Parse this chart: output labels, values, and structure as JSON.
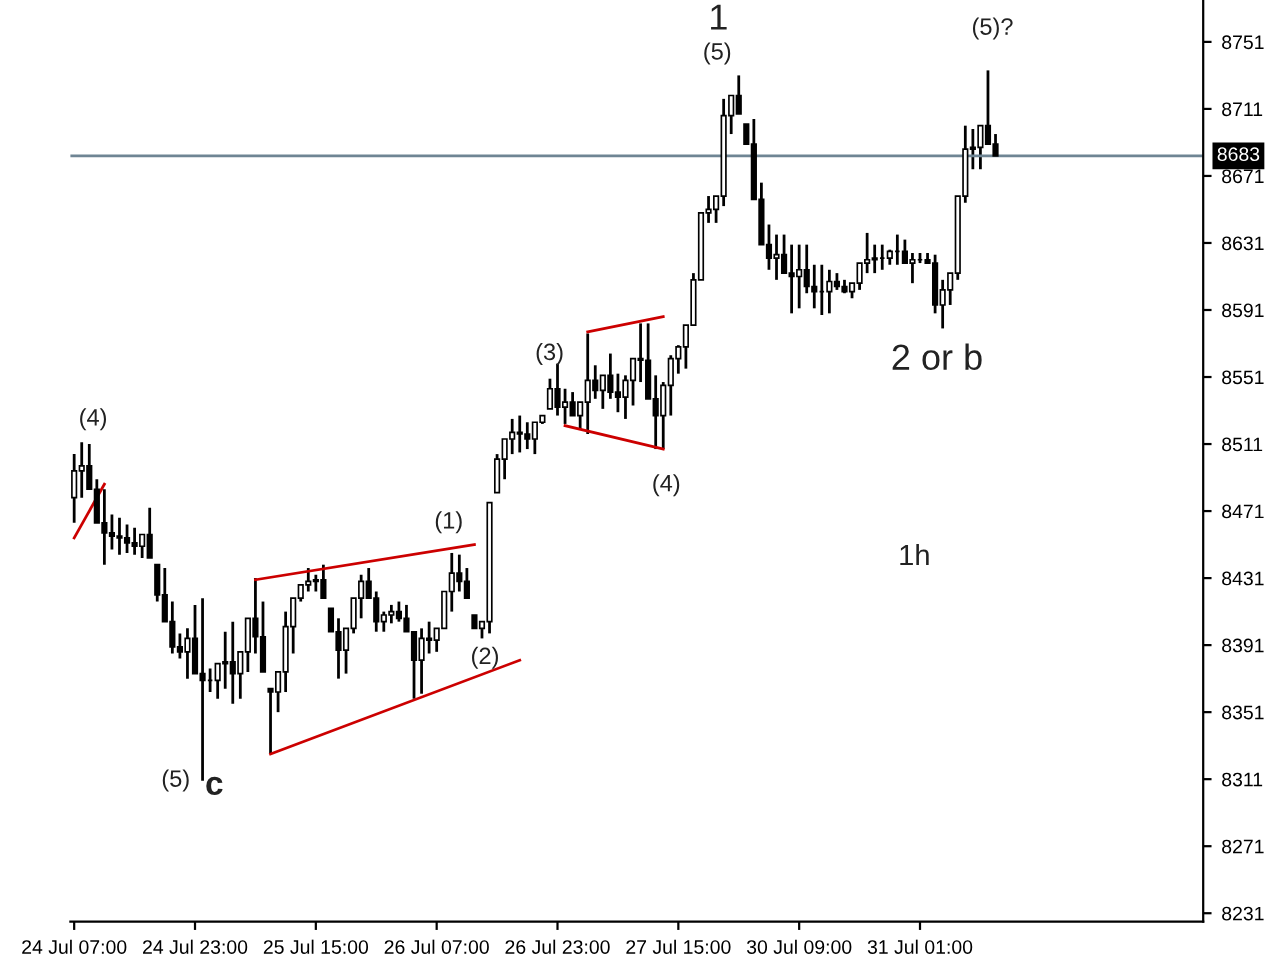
{
  "chart_data": {
    "type": "candlestick",
    "categories": [
      "24 Jul 07:00",
      null,
      null,
      null,
      null,
      null,
      null,
      null,
      null,
      null,
      null,
      null,
      null,
      null,
      null,
      null,
      "24 Jul 23:00",
      null,
      null,
      null,
      null,
      null,
      null,
      null,
      null,
      null,
      null,
      null,
      null,
      null,
      null,
      null,
      "25 Jul 15:00",
      null,
      null,
      null,
      null,
      null,
      null,
      null,
      null,
      null,
      null,
      null,
      null,
      null,
      null,
      null,
      "26 Jul 07:00",
      null,
      null,
      null,
      null,
      null,
      null,
      null,
      null,
      null,
      null,
      null,
      null,
      null,
      null,
      null,
      "26 Jul 23:00",
      null,
      null,
      null,
      null,
      null,
      null,
      null,
      null,
      null,
      null,
      null,
      null,
      null,
      null,
      null,
      "27 Jul 15:00",
      null,
      null,
      null,
      null,
      null,
      null,
      null,
      null,
      null,
      null,
      null,
      null,
      null,
      null,
      null,
      "30 Jul 09:00",
      null,
      null,
      null,
      null,
      null,
      null,
      null,
      null,
      null,
      null,
      null,
      null,
      null,
      null,
      null,
      "31 Jul 01:00",
      null,
      null,
      null,
      null,
      null,
      null,
      null,
      null,
      null,
      null,
      null,
      null,
      null,
      null,
      null,
      null,
      null,
      null,
      null,
      null,
      null,
      null,
      null,
      null,
      null,
      null,
      null,
      null,
      null,
      null,
      null,
      null,
      null,
      null,
      null,
      null,
      null
    ],
    "ohlc": [
      [
        8479,
        8505,
        8464,
        8495
      ],
      [
        8495,
        8512,
        8479,
        8498
      ],
      [
        8498,
        8511,
        8484,
        8484
      ],
      [
        8484,
        8490,
        8464,
        8464
      ],
      [
        8464,
        8484,
        8439,
        8458
      ],
      [
        8458,
        8469,
        8448,
        8456
      ],
      [
        8456,
        8467,
        8445,
        8455
      ],
      [
        8455,
        8463,
        8446,
        8452
      ],
      [
        8452,
        8461,
        8445,
        8450
      ],
      [
        8450,
        8457,
        8443,
        8457
      ],
      [
        8457,
        8473,
        8443,
        8443
      ],
      [
        8439,
        8439,
        8417,
        8421
      ],
      [
        8421,
        8437,
        8405,
        8405
      ],
      [
        8405,
        8417,
        8386,
        8390
      ],
      [
        8390,
        8398,
        8383,
        8387
      ],
      [
        8387,
        8401,
        8371,
        8395
      ],
      [
        8395,
        8415,
        8374,
        8374
      ],
      [
        8374,
        8419,
        8310,
        8370
      ],
      [
        8370,
        8377,
        8363,
        8370
      ],
      [
        8370,
        8380,
        8359,
        8380
      ],
      [
        8380,
        8399,
        8365,
        8381
      ],
      [
        8381,
        8405,
        8356,
        8374
      ],
      [
        8374,
        8387,
        8359,
        8387
      ],
      [
        8387,
        8407,
        8375,
        8407
      ],
      [
        8407,
        8431,
        8386,
        8396
      ],
      [
        8396,
        8417,
        8375,
        8375
      ],
      [
        8365,
        8365,
        8326,
        8363
      ],
      [
        8363,
        8375,
        8351,
        8375
      ],
      [
        8375,
        8411,
        8363,
        8402
      ],
      [
        8402,
        8419,
        8386,
        8419
      ],
      [
        8419,
        8427,
        8417,
        8427
      ],
      [
        8427,
        8437,
        8423,
        8429
      ],
      [
        8429,
        8433,
        8423,
        8430
      ],
      [
        8430,
        8439,
        8419,
        8419
      ],
      [
        8413,
        8413,
        8399,
        8399
      ],
      [
        8399,
        8407,
        8371,
        8388
      ],
      [
        8388,
        8401,
        8374,
        8401
      ],
      [
        8401,
        8419,
        8398,
        8419
      ],
      [
        8419,
        8433,
        8407,
        8429
      ],
      [
        8429,
        8437,
        8419,
        8419
      ],
      [
        8419,
        8423,
        8399,
        8405
      ],
      [
        8405,
        8411,
        8399,
        8409
      ],
      [
        8409,
        8415,
        8404,
        8411
      ],
      [
        8411,
        8417,
        8405,
        8407
      ],
      [
        8407,
        8415,
        8399,
        8399
      ],
      [
        8399,
        8399,
        8359,
        8382
      ],
      [
        8382,
        8401,
        8362,
        8395
      ],
      [
        8395,
        8405,
        8386,
        8394
      ],
      [
        8394,
        8401,
        8387,
        8401
      ],
      [
        8401,
        8423,
        8401,
        8423
      ],
      [
        8423,
        8446,
        8411,
        8434
      ],
      [
        8434,
        8445,
        8423,
        8429
      ],
      [
        8429,
        8437,
        8419,
        8419
      ],
      [
        8409,
        8409,
        8401,
        8401
      ],
      [
        8401,
        8405,
        8395,
        8405
      ],
      [
        8405,
        8476,
        8398,
        8476
      ],
      [
        8482,
        8505,
        8482,
        8502
      ],
      [
        8502,
        8514,
        8490,
        8514
      ],
      [
        8514,
        8526,
        8505,
        8518
      ],
      [
        8518,
        8528,
        8506,
        8517
      ],
      [
        8517,
        8524,
        8508,
        8514
      ],
      [
        8514,
        8524,
        8505,
        8524
      ],
      [
        8524,
        8528,
        8523,
        8528
      ],
      [
        8532,
        8550,
        8532,
        8544
      ],
      [
        8544,
        8559,
        8528,
        8533
      ],
      [
        8533,
        8544,
        8523,
        8536
      ],
      [
        8536,
        8542,
        8528,
        8528
      ],
      [
        8528,
        8536,
        8520,
        8536
      ],
      [
        8536,
        8577,
        8517,
        8549
      ],
      [
        8549,
        8558,
        8538,
        8543
      ],
      [
        8543,
        8552,
        8532,
        8552
      ],
      [
        8552,
        8565,
        8538,
        8542
      ],
      [
        8542,
        8553,
        8530,
        8539
      ],
      [
        8539,
        8552,
        8526,
        8549
      ],
      [
        8549,
        8562,
        8534,
        8562
      ],
      [
        8562,
        8583,
        8548,
        8561
      ],
      [
        8561,
        8583,
        8538,
        8538
      ],
      [
        8538,
        8552,
        8508,
        8528
      ],
      [
        8528,
        8548,
        8508,
        8546
      ],
      [
        8546,
        8564,
        8528,
        8562
      ],
      [
        8562,
        8570,
        8553,
        8569
      ],
      [
        8569,
        8582,
        8556,
        8582
      ],
      [
        8582,
        8613,
        8582,
        8609
      ],
      [
        8609,
        8649,
        8609,
        8649
      ],
      [
        8649,
        8659,
        8643,
        8651
      ],
      [
        8651,
        8659,
        8643,
        8659
      ],
      [
        8659,
        8717,
        8653,
        8707
      ],
      [
        8707,
        8719,
        8696,
        8719
      ],
      [
        8719,
        8731,
        8708,
        8708
      ],
      [
        8702,
        8702,
        8690,
        8690
      ],
      [
        8690,
        8705,
        8657,
        8657
      ],
      [
        8657,
        8667,
        8630,
        8630
      ],
      [
        8630,
        8642,
        8615,
        8622
      ],
      [
        8622,
        8636,
        8609,
        8624
      ],
      [
        8624,
        8636,
        8613,
        8613
      ],
      [
        8613,
        8630,
        8589,
        8611
      ],
      [
        8611,
        8630,
        8592,
        8615
      ],
      [
        8615,
        8630,
        8601,
        8605
      ],
      [
        8605,
        8618,
        8592,
        8602
      ],
      [
        8602,
        8618,
        8588,
        8602
      ],
      [
        8602,
        8615,
        8589,
        8608
      ],
      [
        8608,
        8613,
        8603,
        8605
      ],
      [
        8605,
        8609,
        8601,
        8602
      ],
      [
        8602,
        8607,
        8598,
        8607
      ],
      [
        8607,
        8619,
        8603,
        8619
      ],
      [
        8619,
        8637,
        8613,
        8621
      ],
      [
        8621,
        8630,
        8613,
        8622
      ],
      [
        8622,
        8630,
        8615,
        8622
      ],
      [
        8622,
        8627,
        8618,
        8626
      ],
      [
        8626,
        8636,
        8618,
        8626
      ],
      [
        8626,
        8633,
        8619,
        8619
      ],
      [
        8619,
        8625,
        8607,
        8621
      ],
      [
        8621,
        8625,
        8619,
        8621
      ],
      [
        8621,
        8625,
        8619,
        8619
      ],
      [
        8619,
        8624,
        8589,
        8594
      ],
      [
        8594,
        8609,
        8580,
        8603
      ],
      [
        8603,
        8613,
        8594,
        8613
      ],
      [
        8613,
        8659,
        8609,
        8659
      ],
      [
        8659,
        8701,
        8655,
        8687
      ],
      [
        8687,
        8699,
        8675,
        8688
      ],
      [
        8688,
        8701,
        8675,
        8701
      ],
      [
        8701,
        8734,
        8690,
        8690
      ],
      [
        8690,
        8696,
        8683,
        8683
      ],
      null,
      null,
      null,
      null,
      null,
      null,
      null,
      null,
      null,
      null,
      null,
      null,
      null,
      null,
      null,
      null,
      null,
      null,
      null,
      null,
      null,
      null,
      null,
      null,
      null,
      null,
      null
    ],
    "color": "#000000",
    "series": [
      {
        "type": "line",
        "color": "#cc0000",
        "values": [
          8455,
          null,
          null,
          null,
          8487,
          null,
          null,
          null,
          null,
          null,
          null,
          null,
          null,
          null,
          null,
          null,
          null,
          null,
          null,
          null,
          null,
          null,
          null,
          null,
          null,
          null,
          null,
          null,
          null,
          null,
          null,
          null,
          null,
          null,
          null,
          null,
          null,
          null,
          null,
          null,
          null,
          null,
          null,
          null,
          null,
          null,
          null,
          null,
          null,
          null,
          null,
          null,
          null,
          null,
          null,
          null,
          null,
          null,
          null,
          null,
          null,
          null,
          null,
          null,
          null,
          null,
          null,
          null,
          null,
          null,
          null,
          null,
          null,
          null,
          null,
          null,
          null,
          null,
          null,
          null,
          null,
          null,
          null,
          null,
          null,
          null,
          null,
          null,
          null,
          null,
          null,
          null,
          null,
          null,
          null,
          null,
          null,
          null,
          null,
          null,
          null,
          null,
          null,
          null,
          null,
          null,
          null,
          null,
          null,
          null,
          null,
          null,
          null,
          null,
          null,
          null,
          null,
          null,
          null,
          null,
          null,
          null,
          null,
          null,
          null,
          null,
          null,
          null,
          null,
          null,
          null,
          null,
          null,
          null,
          null,
          null,
          null,
          null,
          null,
          null,
          null,
          null,
          null,
          null,
          null,
          null,
          null,
          null,
          null,
          null
        ]
      },
      {
        "type": "line",
        "color": "#cc0000",
        "values": [
          null,
          null,
          null,
          null,
          null,
          null,
          null,
          null,
          null,
          null,
          null,
          null,
          null,
          null,
          null,
          null,
          null,
          null,
          null,
          null,
          null,
          null,
          null,
          null,
          8430,
          null,
          null,
          null,
          null,
          null,
          null,
          null,
          null,
          null,
          null,
          null,
          null,
          null,
          null,
          null,
          null,
          null,
          null,
          null,
          null,
          null,
          null,
          null,
          null,
          null,
          null,
          null,
          null,
          8451,
          null,
          null,
          null,
          null,
          null,
          null,
          null,
          null,
          null,
          null,
          null,
          null,
          null,
          null,
          null,
          null,
          null,
          null,
          null,
          null,
          null,
          null,
          null,
          null,
          null,
          null,
          null,
          null,
          null,
          null,
          null,
          null,
          null,
          null,
          null,
          null,
          null,
          null,
          null,
          null,
          null,
          null,
          null,
          null,
          null,
          null,
          null,
          null,
          null,
          null,
          null,
          null,
          null,
          null,
          null,
          null,
          null,
          null,
          null,
          null,
          null,
          null,
          null,
          null,
          null,
          null,
          null,
          null,
          null,
          null,
          null,
          null,
          null,
          null,
          null,
          null,
          null,
          null,
          null,
          null,
          null,
          null,
          null,
          null,
          null,
          null,
          null,
          null,
          null,
          null,
          null,
          null,
          null,
          null,
          null,
          null
        ]
      },
      {
        "type": "line",
        "color": "#cc0000",
        "values": [
          null,
          null,
          null,
          null,
          null,
          null,
          null,
          null,
          null,
          null,
          null,
          null,
          null,
          null,
          null,
          null,
          null,
          null,
          null,
          null,
          null,
          null,
          null,
          null,
          null,
          null,
          8326,
          null,
          null,
          null,
          null,
          null,
          null,
          null,
          null,
          null,
          null,
          null,
          null,
          null,
          null,
          null,
          null,
          null,
          null,
          null,
          null,
          null,
          null,
          null,
          null,
          null,
          null,
          null,
          null,
          null,
          null,
          null,
          null,
          8382,
          null,
          null,
          null,
          null,
          null,
          null,
          null,
          null,
          null,
          null,
          null,
          null,
          null,
          null,
          null,
          null,
          null,
          null,
          null,
          null,
          null,
          null,
          null,
          null,
          null,
          null,
          null,
          null,
          null,
          null,
          null,
          null,
          null,
          null,
          null,
          null,
          null,
          null,
          null,
          null,
          null,
          null,
          null,
          null,
          null,
          null,
          null,
          null,
          null,
          null,
          null,
          null,
          null,
          null,
          null,
          null,
          null,
          null,
          null,
          null,
          null,
          null,
          null,
          null,
          null,
          null,
          null,
          null,
          null,
          null,
          null,
          null,
          null,
          null,
          null,
          null,
          null,
          null,
          null,
          null,
          null,
          null,
          null,
          null,
          null,
          null,
          null,
          null,
          null,
          null
        ]
      },
      {
        "type": "line",
        "color": "#cc0000",
        "values": [
          null,
          null,
          null,
          null,
          null,
          null,
          null,
          null,
          null,
          null,
          null,
          null,
          null,
          null,
          null,
          null,
          null,
          null,
          null,
          null,
          null,
          null,
          null,
          null,
          null,
          null,
          null,
          null,
          null,
          null,
          null,
          null,
          null,
          null,
          null,
          null,
          null,
          null,
          null,
          null,
          null,
          null,
          null,
          null,
          null,
          null,
          null,
          null,
          null,
          null,
          null,
          null,
          null,
          null,
          null,
          null,
          null,
          null,
          null,
          null,
          null,
          null,
          null,
          null,
          null,
          null,
          null,
          null,
          8578,
          null,
          null,
          null,
          null,
          null,
          null,
          null,
          null,
          null,
          8587,
          null,
          null,
          null,
          null,
          null,
          null,
          null,
          null,
          null,
          null,
          null,
          null,
          null,
          null,
          null,
          null,
          null,
          null,
          null,
          null,
          null,
          null,
          null,
          null,
          null,
          null,
          null,
          null,
          null,
          null,
          null,
          null,
          null,
          null,
          null,
          null,
          null,
          null,
          null,
          null,
          null,
          null,
          null,
          null,
          null,
          null,
          null,
          null,
          null,
          null,
          null,
          null,
          null,
          null,
          null,
          null,
          null,
          null,
          null,
          null,
          null,
          null,
          null,
          null,
          null,
          null,
          null,
          null,
          null,
          null,
          null
        ]
      },
      {
        "type": "line",
        "color": "#cc0000",
        "values": [
          null,
          null,
          null,
          null,
          null,
          null,
          null,
          null,
          null,
          null,
          null,
          null,
          null,
          null,
          null,
          null,
          null,
          null,
          null,
          null,
          null,
          null,
          null,
          null,
          null,
          null,
          null,
          null,
          null,
          null,
          null,
          null,
          null,
          null,
          null,
          null,
          null,
          null,
          null,
          null,
          null,
          null,
          null,
          null,
          null,
          null,
          null,
          null,
          null,
          null,
          null,
          null,
          null,
          null,
          null,
          null,
          null,
          null,
          null,
          null,
          null,
          null,
          null,
          null,
          null,
          8522,
          null,
          null,
          null,
          null,
          null,
          null,
          null,
          null,
          null,
          null,
          null,
          null,
          8508,
          null,
          null,
          null,
          null,
          null,
          null,
          null,
          null,
          null,
          null,
          null,
          null,
          null,
          null,
          null,
          null,
          null,
          null,
          null,
          null,
          null,
          null,
          null,
          null,
          null,
          null,
          null,
          null,
          null,
          null,
          null,
          null,
          null,
          null,
          null,
          null,
          null,
          null,
          null,
          null,
          null,
          null,
          null,
          null,
          null,
          null,
          null,
          null,
          null,
          null,
          null,
          null,
          null,
          null,
          null,
          null,
          null,
          null,
          null,
          null,
          null,
          null,
          null,
          null,
          null,
          null,
          null,
          null,
          null,
          null,
          null
        ]
      }
    ],
    "ylim": [
      8226,
      8776
    ],
    "yticks": [
      8231,
      8271,
      8311,
      8351,
      8391,
      8431,
      8471,
      8511,
      8551,
      8591,
      8631,
      8671,
      8711,
      8751
    ],
    "ref_lines": [
      {
        "axis": "y",
        "value": 8683,
        "label": "8683",
        "color": "#6f8594"
      }
    ],
    "grid": false,
    "annotations": [
      "(4)",
      "(5)",
      "c",
      {
        "text": "(1)",
        "y": 8451
      },
      {
        "text": "(2)",
        "y": 8395
      },
      "(3)",
      {
        "text": "(4)",
        "y": 8508
      },
      "1",
      "(5)",
      "(5)?",
      "2 or b",
      "1h"
    ]
  }
}
